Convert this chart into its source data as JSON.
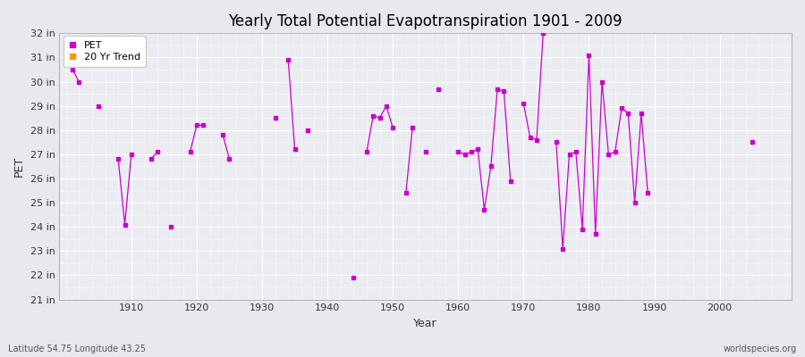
{
  "title": "Yearly Total Potential Evapotranspiration 1901 - 2009",
  "xlabel": "Year",
  "ylabel": "PET",
  "subtitle_left": "Latitude 54.75 Longitude 43.25",
  "subtitle_right": "worldspecies.org",
  "ylim": [
    21,
    32
  ],
  "xlim": [
    1899,
    2011
  ],
  "ytick_labels": [
    "21 in",
    "22 in",
    "23 in",
    "24 in",
    "25 in",
    "26 in",
    "27 in",
    "28 in",
    "29 in",
    "30 in",
    "31 in",
    "32 in"
  ],
  "ytick_values": [
    21,
    22,
    23,
    24,
    25,
    26,
    27,
    28,
    29,
    30,
    31,
    32
  ],
  "xtick_values": [
    1910,
    1920,
    1930,
    1940,
    1950,
    1960,
    1970,
    1980,
    1990,
    2000
  ],
  "pet_color": "#cc00cc",
  "trend_color": "#ff9900",
  "bg_color": "#e8e8ef",
  "plot_bg_color": "#ebebf2",
  "legend_pet_label": "PET",
  "legend_trend_label": "20 Yr Trend",
  "data_years": [
    1901,
    1902,
    1905,
    1908,
    1909,
    1910,
    1913,
    1914,
    1916,
    1919,
    1920,
    1921,
    1924,
    1925,
    1932,
    1934,
    1935,
    1937,
    1944,
    1946,
    1947,
    1948,
    1949,
    1950,
    1952,
    1953,
    1955,
    1957,
    1960,
    1961,
    1962,
    1963,
    1964,
    1965,
    1966,
    1967,
    1968,
    1970,
    1971,
    1972,
    1973,
    1975,
    1976,
    1977,
    1978,
    1979,
    1980,
    1981,
    1982,
    1983,
    1984,
    1985,
    1986,
    1987,
    1988,
    1989,
    2005
  ],
  "data_values": [
    30.5,
    30.0,
    29.0,
    26.8,
    24.1,
    27.0,
    26.8,
    27.1,
    24.0,
    27.1,
    28.2,
    28.2,
    27.8,
    26.8,
    28.5,
    30.9,
    27.2,
    28.0,
    21.9,
    27.1,
    28.6,
    28.5,
    29.0,
    28.1,
    25.4,
    28.1,
    27.1,
    29.7,
    27.1,
    27.0,
    27.1,
    27.2,
    24.7,
    26.5,
    29.7,
    29.6,
    25.9,
    29.1,
    27.7,
    27.6,
    32.0,
    27.5,
    23.1,
    27.0,
    27.1,
    23.9,
    31.1,
    23.7,
    30.0,
    27.0,
    27.1,
    28.9,
    28.7,
    25.0,
    28.7,
    25.4,
    27.5
  ]
}
